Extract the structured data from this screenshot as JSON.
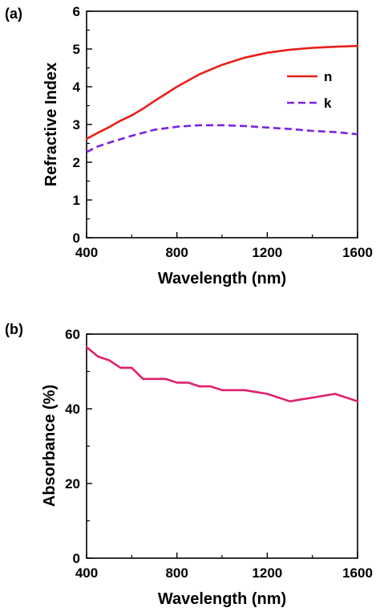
{
  "chart_data": [
    {
      "panel_label": "(a)",
      "type": "line",
      "xlabel": "Wavelength (nm)",
      "ylabel": "Refractive Index",
      "xlim": [
        400,
        1600
      ],
      "ylim": [
        0,
        6
      ],
      "xticks": [
        400,
        800,
        1200,
        1600
      ],
      "yticks": [
        0,
        1,
        2,
        3,
        4,
        5,
        6
      ],
      "grid": false,
      "legend_position": "right",
      "series": [
        {
          "name": "n",
          "color": "#e8201a",
          "dashed": false,
          "x": [
            400,
            450,
            500,
            550,
            600,
            650,
            700,
            800,
            900,
            1000,
            1100,
            1200,
            1300,
            1400,
            1500,
            1600
          ],
          "y": [
            2.62,
            2.78,
            2.93,
            3.1,
            3.24,
            3.42,
            3.62,
            4.0,
            4.33,
            4.58,
            4.77,
            4.9,
            4.98,
            5.03,
            5.06,
            5.08
          ]
        },
        {
          "name": "k",
          "color": "#7b22e0",
          "dashed": true,
          "x": [
            400,
            450,
            500,
            600,
            700,
            800,
            900,
            1000,
            1100,
            1200,
            1300,
            1400,
            1500,
            1600
          ],
          "y": [
            2.27,
            2.42,
            2.52,
            2.7,
            2.86,
            2.94,
            2.98,
            2.98,
            2.96,
            2.92,
            2.88,
            2.83,
            2.8,
            2.74
          ]
        }
      ]
    },
    {
      "panel_label": "(b)",
      "type": "line",
      "xlabel": "Wavelength (nm)",
      "ylabel": "Absorbance (%)",
      "xlim": [
        400,
        1600
      ],
      "ylim": [
        0,
        60
      ],
      "xticks": [
        400,
        800,
        1200,
        1600
      ],
      "yticks": [
        0,
        20,
        40,
        60
      ],
      "grid": false,
      "series": [
        {
          "name": "",
          "color": "#e0206e",
          "dashed": false,
          "x": [
            400,
            450,
            500,
            550,
            600,
            650,
            700,
            750,
            800,
            850,
            900,
            950,
            1000,
            1100,
            1200,
            1300,
            1400,
            1500,
            1600
          ],
          "y": [
            56.5,
            54,
            53,
            51,
            51,
            48,
            48,
            48,
            47,
            47,
            46,
            46,
            45,
            45,
            44,
            42,
            43,
            44,
            42
          ]
        }
      ]
    }
  ]
}
